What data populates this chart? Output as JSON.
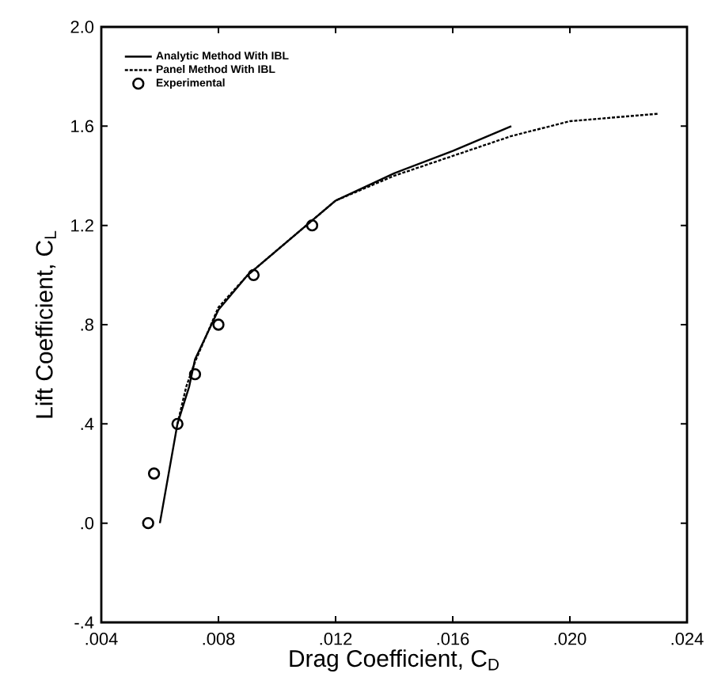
{
  "chart_data": {
    "type": "line",
    "xlabel": "Drag Coefficient, C$_{D}$",
    "ylabel": "Lift Coefficient, C$_{L}$",
    "xlim": [
      0.004,
      0.024
    ],
    "ylim": [
      -0.4,
      2.0
    ],
    "xticks": [
      {
        "value": 0.004,
        "label": ".004"
      },
      {
        "value": 0.008,
        "label": ".008"
      },
      {
        "value": 0.012,
        "label": ".012"
      },
      {
        "value": 0.016,
        "label": ".016"
      },
      {
        "value": 0.02,
        "label": ".020"
      },
      {
        "value": 0.024,
        "label": ".024"
      }
    ],
    "yticks": [
      {
        "value": -0.4,
        "label": "-.4"
      },
      {
        "value": 0.0,
        "label": ".0"
      },
      {
        "value": 0.4,
        "label": ".4"
      },
      {
        "value": 0.8,
        "label": ".8"
      },
      {
        "value": 1.2,
        "label": "1.2"
      },
      {
        "value": 1.6,
        "label": "1.6"
      },
      {
        "value": 2.0,
        "label": "2.0"
      }
    ],
    "legend": "top left",
    "grid": false,
    "series": [
      {
        "name": "Analytic Method With IBL",
        "color": "#000000",
        "line_style": "solid",
        "marker": "none",
        "x": [
          0.006,
          0.0066,
          0.007,
          0.0072,
          0.008,
          0.009,
          0.0112,
          0.012,
          0.014,
          0.016,
          0.018
        ],
        "values": [
          0.0,
          0.4,
          0.55,
          0.66,
          0.86,
          1.0,
          1.22,
          1.3,
          1.41,
          1.5,
          1.6
        ]
      },
      {
        "name": "Panel Method With IBL",
        "color": "#000000",
        "line_style": "dashed",
        "marker": "none",
        "x": [
          0.0066,
          0.0069,
          0.0072,
          0.008,
          0.009,
          0.0112,
          0.012,
          0.014,
          0.016,
          0.018,
          0.02,
          0.023
        ],
        "values": [
          0.4,
          0.55,
          0.65,
          0.87,
          1.0,
          1.22,
          1.3,
          1.4,
          1.48,
          1.56,
          1.62,
          1.65
        ]
      },
      {
        "name": "Experimental",
        "type": "scatter",
        "color": "#000000",
        "marker": "circle",
        "x": [
          0.0056,
          0.0058,
          0.0066,
          0.0072,
          0.008,
          0.0092,
          0.0112
        ],
        "values": [
          0.0,
          0.2,
          0.4,
          0.6,
          0.8,
          1.0,
          1.2
        ]
      }
    ]
  }
}
